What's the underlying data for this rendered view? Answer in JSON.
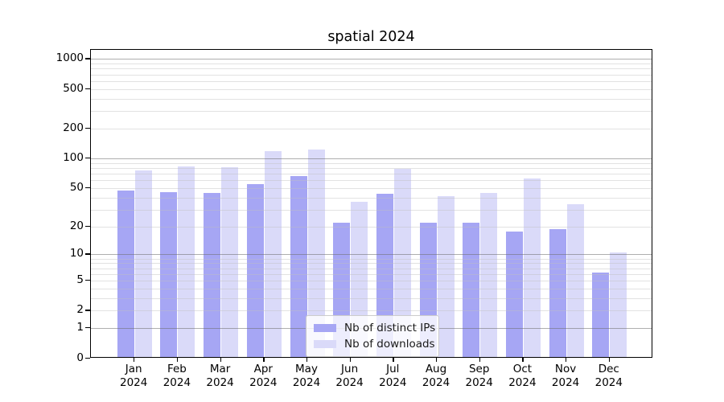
{
  "title": "spatial 2024",
  "colors": {
    "ips": "#a6a6f4",
    "downloads": "#dadaf9",
    "grid_major": "#b0b0b0",
    "grid_minor": "#e3e3e3",
    "axis": "#000000"
  },
  "legend": {
    "items": [
      {
        "label": "Nb of distinct IPs",
        "series_key": "ips"
      },
      {
        "label": "Nb of downloads",
        "series_key": "downloads"
      }
    ]
  },
  "chart_data": {
    "type": "bar",
    "title": "spatial 2024",
    "categories": [
      "Jan",
      "Feb",
      "Mar",
      "Apr",
      "May",
      "Jun",
      "Jul",
      "Aug",
      "Sep",
      "Oct",
      "Nov",
      "Dec"
    ],
    "category_year": "2024",
    "series": [
      {
        "name": "Nb of distinct IPs",
        "key": "ips",
        "values": [
          45,
          44,
          43,
          53,
          64,
          21,
          42,
          21,
          21,
          17,
          18,
          6
        ]
      },
      {
        "name": "Nb of downloads",
        "key": "downloads",
        "values": [
          73,
          80,
          79,
          114,
          119,
          35,
          76,
          40,
          43,
          60,
          33,
          10
        ]
      }
    ],
    "yscale": "log1p",
    "ytick_values": [
      0,
      1,
      2,
      5,
      10,
      20,
      50,
      100,
      200,
      500,
      1000
    ],
    "ytick_labels": [
      "0",
      "1",
      "2",
      "5",
      "10",
      "20",
      "50",
      "100",
      "200",
      "500",
      "1000"
    ],
    "minor_grid_values": [
      2,
      3,
      4,
      5,
      6,
      7,
      8,
      9,
      20,
      30,
      40,
      50,
      60,
      70,
      80,
      90,
      200,
      300,
      400,
      500,
      600,
      700,
      800,
      900
    ],
    "major_grid_values": [
      1,
      10,
      100,
      1000
    ],
    "ylim": [
      0,
      1237
    ],
    "xlabel": "",
    "ylabel": "",
    "grid": true,
    "legend_position": "lower center"
  }
}
